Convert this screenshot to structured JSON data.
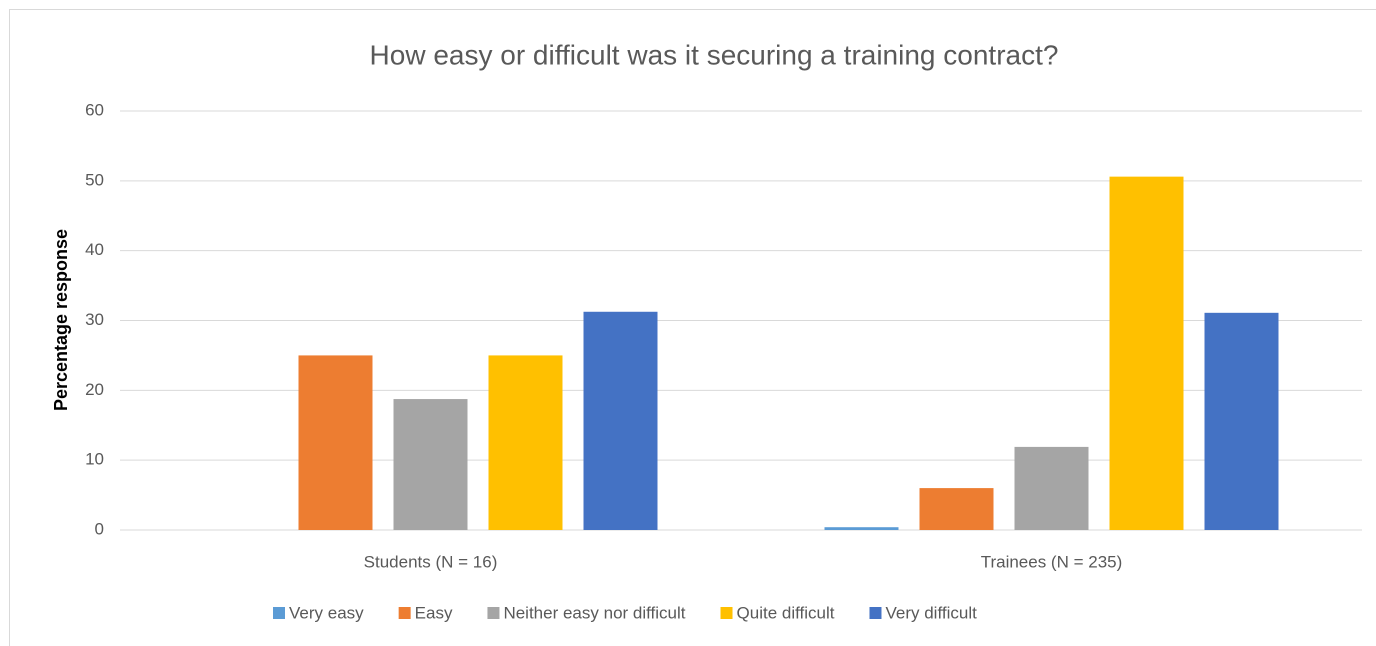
{
  "chart_data": {
    "type": "bar",
    "title": "How easy or difficult was it securing a training contract?",
    "ylabel": "Percentage response",
    "categories": [
      "Students (N = 16)",
      "Trainees (N = 235)"
    ],
    "series": [
      {
        "name": "Very easy",
        "color": "#5b9bd5",
        "values": [
          0,
          0.4
        ]
      },
      {
        "name": "Easy",
        "color": "#ed7d31",
        "values": [
          25,
          6
        ]
      },
      {
        "name": "Neither easy nor difficult",
        "color": "#a5a5a5",
        "values": [
          18.75,
          11.9
        ]
      },
      {
        "name": "Quite difficult",
        "color": "#ffc000",
        "values": [
          25,
          50.6
        ]
      },
      {
        "name": "Very difficult",
        "color": "#4472c4",
        "values": [
          31.25,
          31.1
        ]
      }
    ],
    "ylim": [
      0,
      60
    ],
    "yticks": [
      0,
      10,
      20,
      30,
      40,
      50,
      60
    ],
    "grid": true,
    "legend": "bottom"
  }
}
